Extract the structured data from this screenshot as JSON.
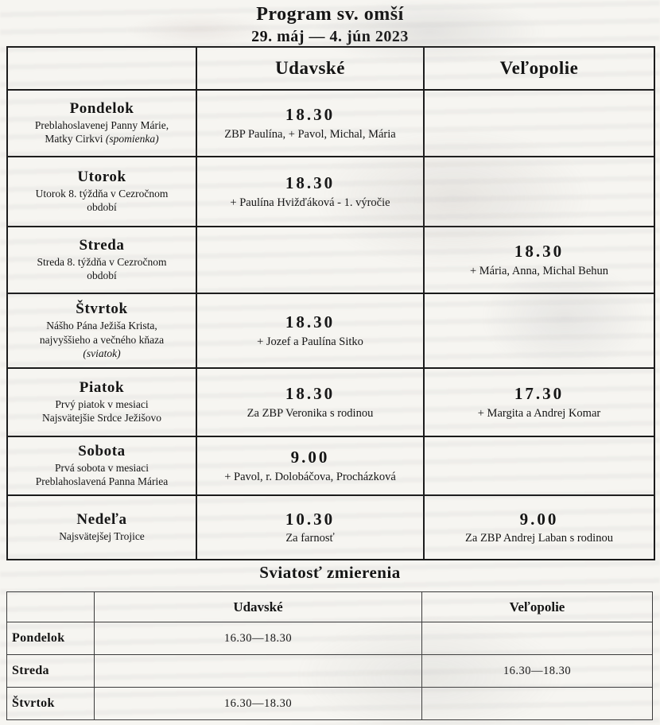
{
  "page": {
    "title": "Program sv. omší",
    "subtitle": "29. máj — 4. jún 2023"
  },
  "mass_table": {
    "header": {
      "udavske": "Udavské",
      "velopolie": "Veľopolie"
    },
    "rows": [
      {
        "day": "Pondelok",
        "desc1": "Preblahoslavenej Panny Márie,",
        "desc2": "Matky Cirkvi",
        "note": "(spomienka)",
        "udavske_time": "18.30",
        "udavske_intention": "ZBP Paulína, + Pavol, Michal, Mária",
        "velopolie_time": "",
        "velopolie_intention": ""
      },
      {
        "day": "Utorok",
        "desc1": "Utorok 8. týždňa v Cezročnom",
        "desc2": "období",
        "udavske_time": "18.30",
        "udavske_intention": "+ Paulína Hvižďáková - 1. výročie",
        "velopolie_time": "",
        "velopolie_intention": ""
      },
      {
        "day": "Streda",
        "desc1": "Streda 8. týždňa v Cezročnom",
        "desc2": "období",
        "udavske_time": "",
        "udavske_intention": "",
        "velopolie_time": "18.30",
        "velopolie_intention": "+ Mária, Anna, Michal Behun"
      },
      {
        "day": "Štvrtok",
        "desc1": "Nášho Pána Ježiša Krista,",
        "desc2": "najvyššieho a večného kňaza",
        "note_block": "(sviatok)",
        "udavske_time": "18.30",
        "udavske_intention": "+ Jozef a Paulína Sitko",
        "velopolie_time": "",
        "velopolie_intention": ""
      },
      {
        "day": "Piatok",
        "desc1": "Prvý piatok v mesiaci",
        "desc2": "Najsvätejšie Srdce Ježišovo",
        "udavske_time": "18.30",
        "udavske_intention": "Za ZBP Veronika s rodinou",
        "velopolie_time": "17.30",
        "velopolie_intention": "+ Margita a Andrej Komar"
      },
      {
        "day": "Sobota",
        "desc1": "Prvá sobota v mesiaci",
        "desc2": "Preblahoslavená Panna Máriea",
        "udavske_time": "9.00",
        "udavske_intention": "+ Pavol, r. Dolobáčova, Procházková",
        "velopolie_time": "",
        "velopolie_intention": ""
      },
      {
        "day": "Nedeľa",
        "desc1": "Najsvätejšej Trojice",
        "udavske_time": "10.30",
        "udavske_intention": "Za farnosť",
        "velopolie_time": "9.00",
        "velopolie_intention": "Za ZBP Andrej Laban s rodinou"
      }
    ]
  },
  "confession_table": {
    "title": "Sviatosť zmierenia",
    "header": {
      "udavske": "Udavské",
      "velopolie": "Veľopolie"
    },
    "rows": [
      {
        "day": "Pondelok",
        "udavske": "16.30—18.30",
        "velopolie": ""
      },
      {
        "day": "Streda",
        "udavske": "",
        "velopolie": "16.30—18.30"
      },
      {
        "day": "Štvrtok",
        "udavske": "16.30—18.30",
        "velopolie": ""
      }
    ]
  }
}
